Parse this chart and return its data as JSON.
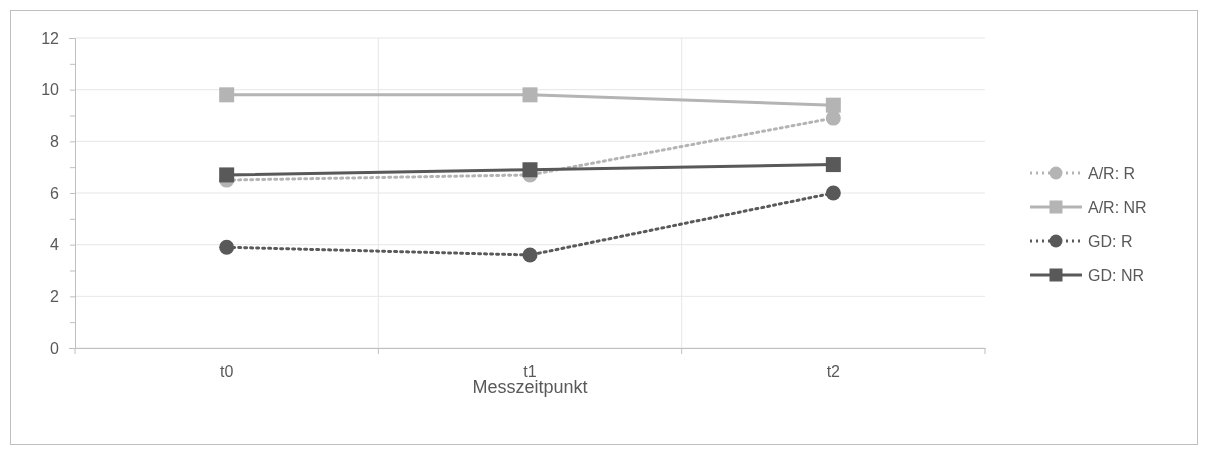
{
  "chart_data": {
    "type": "line",
    "xlabel": "Messzeitpunkt",
    "categories": [
      "t0",
      "t1",
      "t2"
    ],
    "series": [
      {
        "name": "A/R: R",
        "color": "#b4b4b4",
        "values": [
          6.5,
          6.7,
          8.9
        ],
        "marker": "circle",
        "line_style": "dotted"
      },
      {
        "name": "A/R: NR",
        "color": "#b4b4b4",
        "values": [
          9.8,
          9.8,
          9.4
        ],
        "marker": "square",
        "line_style": "solid"
      },
      {
        "name": "GD: R",
        "color": "#595959",
        "values": [
          3.9,
          3.6,
          6.0
        ],
        "marker": "circle",
        "line_style": "dotted"
      },
      {
        "name": "GD: NR",
        "color": "#595959",
        "values": [
          6.7,
          6.9,
          7.1
        ],
        "marker": "square",
        "line_style": "solid"
      }
    ],
    "ylim": [
      0,
      12
    ],
    "yticks": [
      0,
      {
        "value": 1,
        "label": null
      },
      2,
      {
        "value": 3,
        "label": null
      },
      4,
      {
        "value": 5,
        "label": null
      },
      6,
      {
        "value": 7,
        "label": null
      },
      8,
      {
        "value": 9,
        "label": null
      },
      10,
      {
        "value": 11,
        "label": null
      },
      12
    ],
    "grid": true,
    "legend": "right"
  }
}
